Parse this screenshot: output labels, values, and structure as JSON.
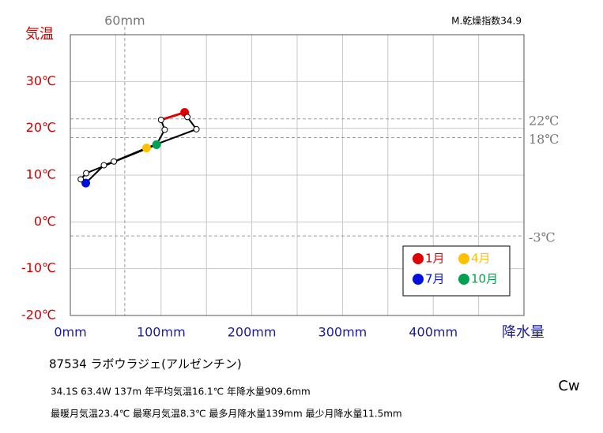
{
  "chart_data": {
    "type": "line",
    "y_axis_label": "気温",
    "x_axis_label": "降水量",
    "aridity_label": "M.乾燥指数34.9",
    "climate_class": "Cw",
    "xlim": [
      0,
      500
    ],
    "ylim": [
      -20,
      40
    ],
    "xticks": [
      {
        "value": 0,
        "label": "0mm"
      },
      {
        "value": 100,
        "label": "100mm"
      },
      {
        "value": 200,
        "label": "200mm"
      },
      {
        "value": 300,
        "label": "300mm"
      },
      {
        "value": 400,
        "label": "400mm"
      }
    ],
    "x_minor_grid": [
      50,
      150,
      250,
      350,
      450,
      500
    ],
    "yticks": [
      {
        "value": -20,
        "label": "-20℃"
      },
      {
        "value": -10,
        "label": "-10℃"
      },
      {
        "value": 0,
        "label": "0℃"
      },
      {
        "value": 10,
        "label": "10℃"
      },
      {
        "value": 20,
        "label": "20℃"
      },
      {
        "value": 30,
        "label": "30℃"
      }
    ],
    "y_grid_top": 40,
    "reference_lines_y": [
      {
        "value": 22,
        "label": "22℃"
      },
      {
        "value": 18,
        "label": "18℃"
      },
      {
        "value": -3,
        "label": "-3℃"
      }
    ],
    "reference_lines_x": [
      {
        "value": 60,
        "label": "60mm"
      }
    ],
    "x": [
      126,
      129,
      139,
      84,
      48,
      37,
      17,
      11.5,
      17.5,
      95,
      104,
      100
    ],
    "series": [
      {
        "values": [
          23.4,
          22.4,
          19.8,
          15.8,
          12.9,
          12.1,
          8.3,
          9.1,
          10.4,
          16.5,
          19.7,
          21.8
        ],
        "color": "#000000"
      }
    ],
    "highlight_color": "#e00000",
    "highlights": [
      {
        "index": 0,
        "label": "1月",
        "color": "#e00000"
      },
      {
        "index": 3,
        "label": "4月",
        "color": "#ffc000"
      },
      {
        "index": 6,
        "label": "7月",
        "color": "#0010e0"
      },
      {
        "index": 9,
        "label": "10月",
        "color": "#00a050"
      }
    ],
    "station": "87534  ラボウラジェ(アルゼンチン)",
    "info_line_1": "34.1S  63.4W 137m  年平均気温16.1℃ 年降水量909.6mm",
    "info_line_2": "最暖月気温23.4℃ 最寒月気温8.3℃ 最多月降水量139mm 最少月降水量11.5mm"
  }
}
